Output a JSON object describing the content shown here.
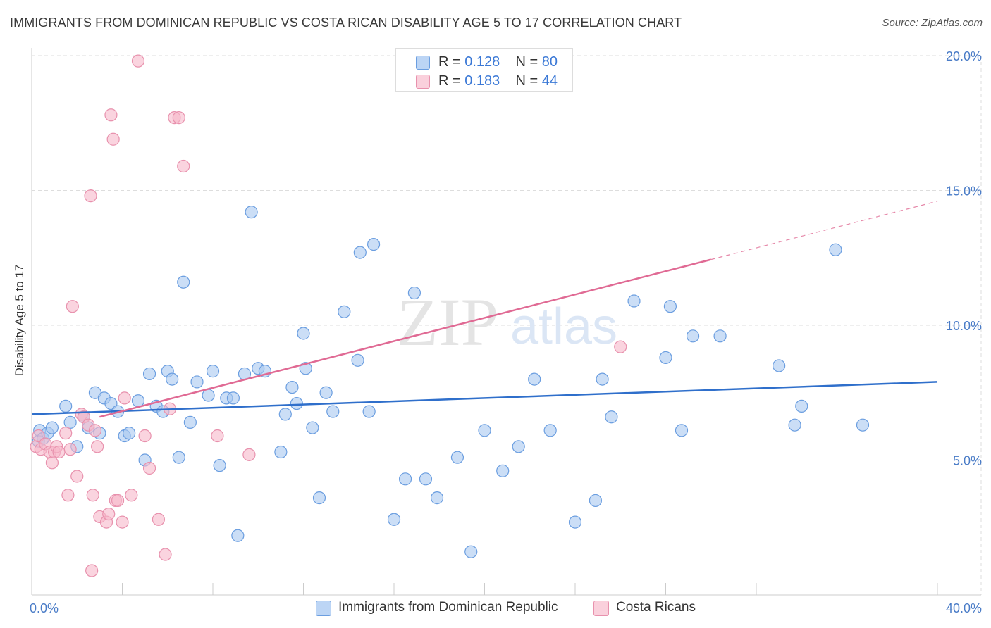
{
  "title": "IMMIGRANTS FROM DOMINICAN REPUBLIC VS COSTA RICAN DISABILITY AGE 5 TO 17 CORRELATION CHART",
  "source": "Source: ZipAtlas.com",
  "watermark": {
    "zip": "ZIP",
    "atlas": "atlas"
  },
  "colors": {
    "blue_fill": "#a9c8f0",
    "blue_stroke": "#6b9ee0",
    "blue_line": "#2f6fcb",
    "pink_fill": "#f6b8ca",
    "pink_stroke": "#e891ad",
    "pink_line": "#e06a94",
    "tick_label": "#4a7cc7",
    "grid": "#dddddd"
  },
  "legend_top": [
    {
      "r_label": "R =",
      "r_value": "0.128",
      "n_label": "N =",
      "n_value": "80",
      "color": "#a9c8f0"
    },
    {
      "r_label": "R =",
      "r_value": "0.183",
      "n_label": "N =",
      "n_value": "44",
      "color": "#f6b8ca"
    }
  ],
  "chart_data": {
    "type": "scatter",
    "title": "IMMIGRANTS FROM DOMINICAN REPUBLIC VS COSTA RICAN DISABILITY AGE 5 TO 17 CORRELATION CHART",
    "xlabel": "",
    "ylabel": "Disability Age 5 to 17",
    "xlim": [
      0,
      40
    ],
    "ylim": [
      0,
      20
    ],
    "x_tick_labels": [
      {
        "value": 0,
        "label": "0.0%"
      },
      {
        "value": 40,
        "label": "40.0%"
      }
    ],
    "y_tick_labels": [
      {
        "value": 5,
        "label": "5.0%"
      },
      {
        "value": 10,
        "label": "10.0%"
      },
      {
        "value": 15,
        "label": "15.0%"
      },
      {
        "value": 20,
        "label": "20.0%"
      }
    ],
    "grid": true,
    "legend_placement": "bottom",
    "series": [
      {
        "name": "Immigrants from Dominican Republic",
        "color": "#a9c8f0",
        "trend": {
          "x": [
            0,
            40
          ],
          "y": [
            6.7,
            7.9
          ],
          "dashed_from": null
        },
        "points": [
          [
            0.3,
            5.7
          ],
          [
            0.35,
            6.1
          ],
          [
            0.5,
            5.8
          ],
          [
            0.7,
            6.0
          ],
          [
            0.9,
            6.2
          ],
          [
            1.5,
            7.0
          ],
          [
            1.7,
            6.4
          ],
          [
            2.0,
            5.5
          ],
          [
            2.3,
            6.6
          ],
          [
            2.5,
            6.2
          ],
          [
            2.8,
            7.5
          ],
          [
            3.0,
            6.0
          ],
          [
            3.2,
            7.3
          ],
          [
            3.5,
            7.1
          ],
          [
            3.8,
            6.8
          ],
          [
            4.1,
            5.9
          ],
          [
            4.3,
            6.0
          ],
          [
            4.7,
            7.2
          ],
          [
            5.0,
            5.0
          ],
          [
            5.2,
            8.2
          ],
          [
            5.5,
            7.0
          ],
          [
            5.8,
            6.8
          ],
          [
            6.0,
            8.3
          ],
          [
            6.2,
            8.0
          ],
          [
            6.5,
            5.1
          ],
          [
            6.7,
            11.6
          ],
          [
            7.0,
            6.4
          ],
          [
            7.3,
            7.9
          ],
          [
            7.8,
            7.4
          ],
          [
            8.0,
            8.3
          ],
          [
            8.3,
            4.8
          ],
          [
            8.6,
            7.3
          ],
          [
            8.9,
            7.3
          ],
          [
            9.1,
            2.2
          ],
          [
            9.4,
            8.2
          ],
          [
            9.7,
            14.2
          ],
          [
            10.0,
            8.4
          ],
          [
            10.3,
            8.3
          ],
          [
            11.0,
            5.3
          ],
          [
            11.2,
            6.7
          ],
          [
            11.5,
            7.7
          ],
          [
            11.7,
            7.1
          ],
          [
            12.0,
            9.7
          ],
          [
            12.1,
            8.4
          ],
          [
            12.4,
            6.2
          ],
          [
            12.7,
            3.6
          ],
          [
            13.0,
            7.5
          ],
          [
            13.3,
            6.8
          ],
          [
            13.8,
            10.5
          ],
          [
            14.4,
            8.7
          ],
          [
            14.5,
            12.7
          ],
          [
            14.9,
            6.8
          ],
          [
            15.1,
            13.0
          ],
          [
            16.0,
            2.8
          ],
          [
            16.5,
            4.3
          ],
          [
            16.9,
            11.2
          ],
          [
            17.4,
            4.3
          ],
          [
            17.9,
            3.6
          ],
          [
            18.8,
            5.1
          ],
          [
            19.4,
            1.6
          ],
          [
            20.0,
            6.1
          ],
          [
            20.8,
            4.6
          ],
          [
            21.5,
            5.5
          ],
          [
            22.2,
            8.0
          ],
          [
            22.9,
            6.1
          ],
          [
            24.0,
            2.7
          ],
          [
            24.9,
            3.5
          ],
          [
            25.2,
            8.0
          ],
          [
            25.6,
            6.6
          ],
          [
            26.6,
            10.9
          ],
          [
            28.0,
            8.8
          ],
          [
            28.2,
            10.7
          ],
          [
            28.7,
            6.1
          ],
          [
            29.2,
            9.6
          ],
          [
            30.4,
            9.6
          ],
          [
            33.0,
            8.5
          ],
          [
            33.7,
            6.3
          ],
          [
            34.0,
            7.0
          ],
          [
            35.5,
            12.8
          ],
          [
            36.7,
            6.3
          ]
        ]
      },
      {
        "name": "Costa Ricans",
        "color": "#f6b8ca",
        "trend": {
          "x": [
            3.0,
            40
          ],
          "y": [
            6.6,
            14.6
          ],
          "dashed_from": 30.0
        },
        "points": [
          [
            0.2,
            5.5
          ],
          [
            0.3,
            5.9
          ],
          [
            0.4,
            5.4
          ],
          [
            0.6,
            5.6
          ],
          [
            0.8,
            5.3
          ],
          [
            0.9,
            4.9
          ],
          [
            1.0,
            5.3
          ],
          [
            1.1,
            5.5
          ],
          [
            1.5,
            6.0
          ],
          [
            1.6,
            3.7
          ],
          [
            1.7,
            5.4
          ],
          [
            1.8,
            10.7
          ],
          [
            2.0,
            4.4
          ],
          [
            2.2,
            6.7
          ],
          [
            2.3,
            6.6
          ],
          [
            2.5,
            6.3
          ],
          [
            2.6,
            14.8
          ],
          [
            2.65,
            0.9
          ],
          [
            2.7,
            3.7
          ],
          [
            2.8,
            6.1
          ],
          [
            2.9,
            5.5
          ],
          [
            3.0,
            2.9
          ],
          [
            3.3,
            2.7
          ],
          [
            3.4,
            3.0
          ],
          [
            3.5,
            17.8
          ],
          [
            3.6,
            16.9
          ],
          [
            3.7,
            3.5
          ],
          [
            3.8,
            3.5
          ],
          [
            4.0,
            2.7
          ],
          [
            4.1,
            7.3
          ],
          [
            4.4,
            3.7
          ],
          [
            4.7,
            19.8
          ],
          [
            5.0,
            5.9
          ],
          [
            5.2,
            4.7
          ],
          [
            5.6,
            2.8
          ],
          [
            5.9,
            1.5
          ],
          [
            6.1,
            6.9
          ],
          [
            6.3,
            17.7
          ],
          [
            6.5,
            17.7
          ],
          [
            6.7,
            15.9
          ],
          [
            8.2,
            5.9
          ],
          [
            9.6,
            5.2
          ],
          [
            26.0,
            9.2
          ],
          [
            1.2,
            5.3
          ]
        ]
      }
    ]
  },
  "legend_bottom": [
    {
      "label": "Immigrants from Dominican Republic",
      "color": "#a9c8f0"
    },
    {
      "label": "Costa Ricans",
      "color": "#f6b8ca"
    }
  ]
}
